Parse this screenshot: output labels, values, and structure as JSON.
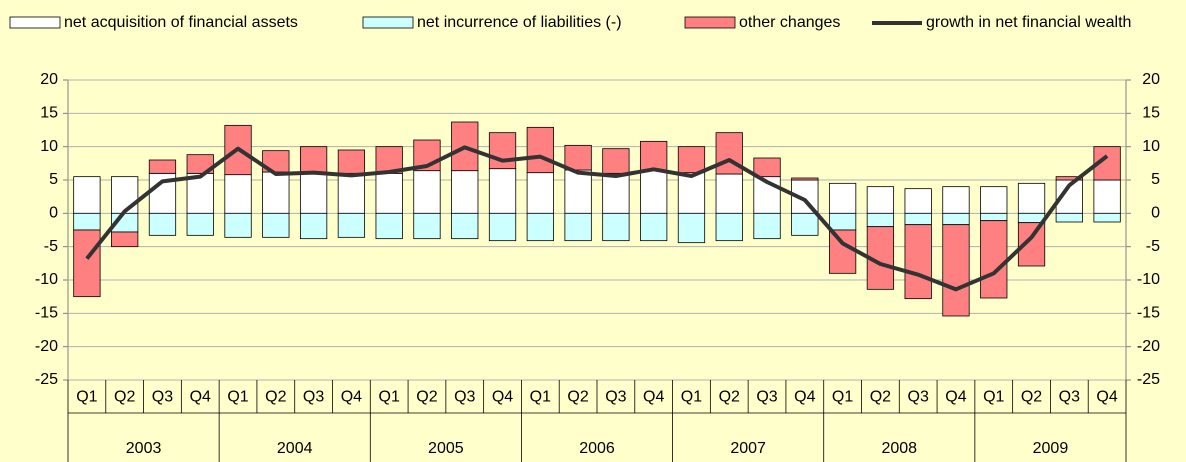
{
  "chart_data": {
    "type": "bar",
    "stacked": true,
    "categories": [
      "Q1",
      "Q2",
      "Q3",
      "Q4",
      "Q1",
      "Q2",
      "Q3",
      "Q4",
      "Q1",
      "Q2",
      "Q3",
      "Q4",
      "Q1",
      "Q2",
      "Q3",
      "Q4",
      "Q1",
      "Q2",
      "Q3",
      "Q4",
      "Q1",
      "Q2",
      "Q3",
      "Q4",
      "Q1",
      "Q2",
      "Q3",
      "Q4"
    ],
    "years": [
      "2003",
      "2004",
      "2005",
      "2006",
      "2007",
      "2008",
      "2009"
    ],
    "series": [
      {
        "name": "net acquisition of financial assets",
        "type": "bar",
        "color": "#ffffff",
        "values": [
          5.5,
          5.5,
          6,
          6,
          5.8,
          6.2,
          6,
          6,
          6,
          6.4,
          6.4,
          6.7,
          6.1,
          6.5,
          6,
          6.4,
          6.1,
          5.9,
          5.5,
          5,
          4.5,
          4,
          3.7,
          4,
          4,
          4.5,
          5,
          5
        ]
      },
      {
        "name": "net incurrence of liabilities (-)",
        "type": "bar",
        "color": "#ccffff",
        "values": [
          -2.5,
          -2.8,
          -3.3,
          -3.3,
          -3.6,
          -3.6,
          -3.8,
          -3.6,
          -3.8,
          -3.8,
          -3.8,
          -4.1,
          -4.1,
          -4.1,
          -4.1,
          -4.1,
          -4.4,
          -4.1,
          -3.8,
          -3.3,
          -2.5,
          -2,
          -1.7,
          -1.7,
          -1.1,
          -1.4,
          -1.3,
          -1.3
        ]
      },
      {
        "name": "other changes",
        "type": "bar",
        "color": "#ff8080",
        "values": [
          -10,
          -2.2,
          2,
          2.8,
          7.4,
          3.2,
          4,
          3.5,
          4,
          4.6,
          7.3,
          5.4,
          6.8,
          3.7,
          3.7,
          4.4,
          3.9,
          6.2,
          2.8,
          0.3,
          -6.5,
          -9.4,
          -11.1,
          -13.7,
          -11.6,
          -6.5,
          0.5,
          5
        ]
      },
      {
        "name": "growth in net financial wealth",
        "type": "line",
        "color": "#333333",
        "values": [
          -6.8,
          0.3,
          4.8,
          5.5,
          9.7,
          5.9,
          6.1,
          5.7,
          6.2,
          7.1,
          9.9,
          7.9,
          8.5,
          6.1,
          5.6,
          6.6,
          5.6,
          8,
          4.7,
          2,
          -4.5,
          -7.6,
          -9.2,
          -11.4,
          -9,
          -3.6,
          4.2,
          8.6
        ]
      }
    ],
    "ylim": [
      -25,
      20
    ],
    "yticks": [
      -25,
      -20,
      -15,
      -10,
      -5,
      0,
      5,
      10,
      15,
      20
    ],
    "y2lim": [
      -25,
      20
    ],
    "y2ticks": [
      -25,
      -20,
      -15,
      -10,
      -5,
      0,
      5,
      10,
      15,
      20
    ],
    "grid": true,
    "legend": "top"
  }
}
